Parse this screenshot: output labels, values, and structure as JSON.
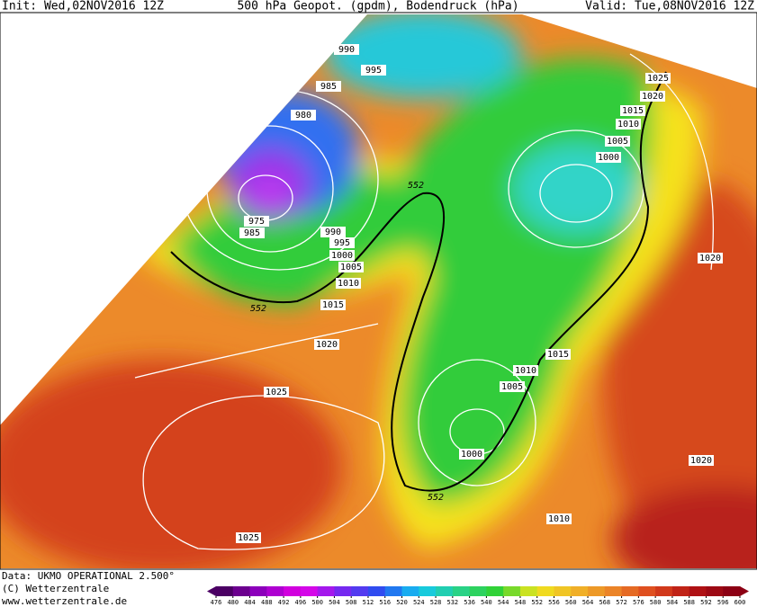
{
  "header": {
    "init": "Init: Wed,02NOV2016 12Z",
    "title": "500 hPa Geopot. (gpdm), Bodendruck (hPa)",
    "valid": "Valid: Tue,08NOV2016 12Z"
  },
  "footer": {
    "data": "Data: UKMO OPERATIONAL 2.500°",
    "copyright": "(C) Wetterzentrale",
    "url": "www.wetterzentrale.de"
  },
  "map": {
    "isobar_labels": [
      990,
      995,
      985,
      980,
      975,
      985,
      990,
      995,
      1000,
      1005,
      1010,
      1015,
      1020,
      1025,
      1025,
      1025,
      1020,
      1015,
      1010,
      1005,
      1000,
      1020,
      1015,
      1010,
      1005,
      1000,
      1010,
      1020
    ],
    "height_labels": [
      552,
      552,
      552
    ]
  },
  "colorbar": {
    "ticks": [
      476,
      480,
      484,
      488,
      492,
      496,
      500,
      504,
      508,
      512,
      516,
      520,
      524,
      528,
      532,
      536,
      540,
      544,
      548,
      552,
      556,
      560,
      564,
      568,
      572,
      576,
      580,
      584,
      588,
      592,
      596,
      600
    ]
  }
}
